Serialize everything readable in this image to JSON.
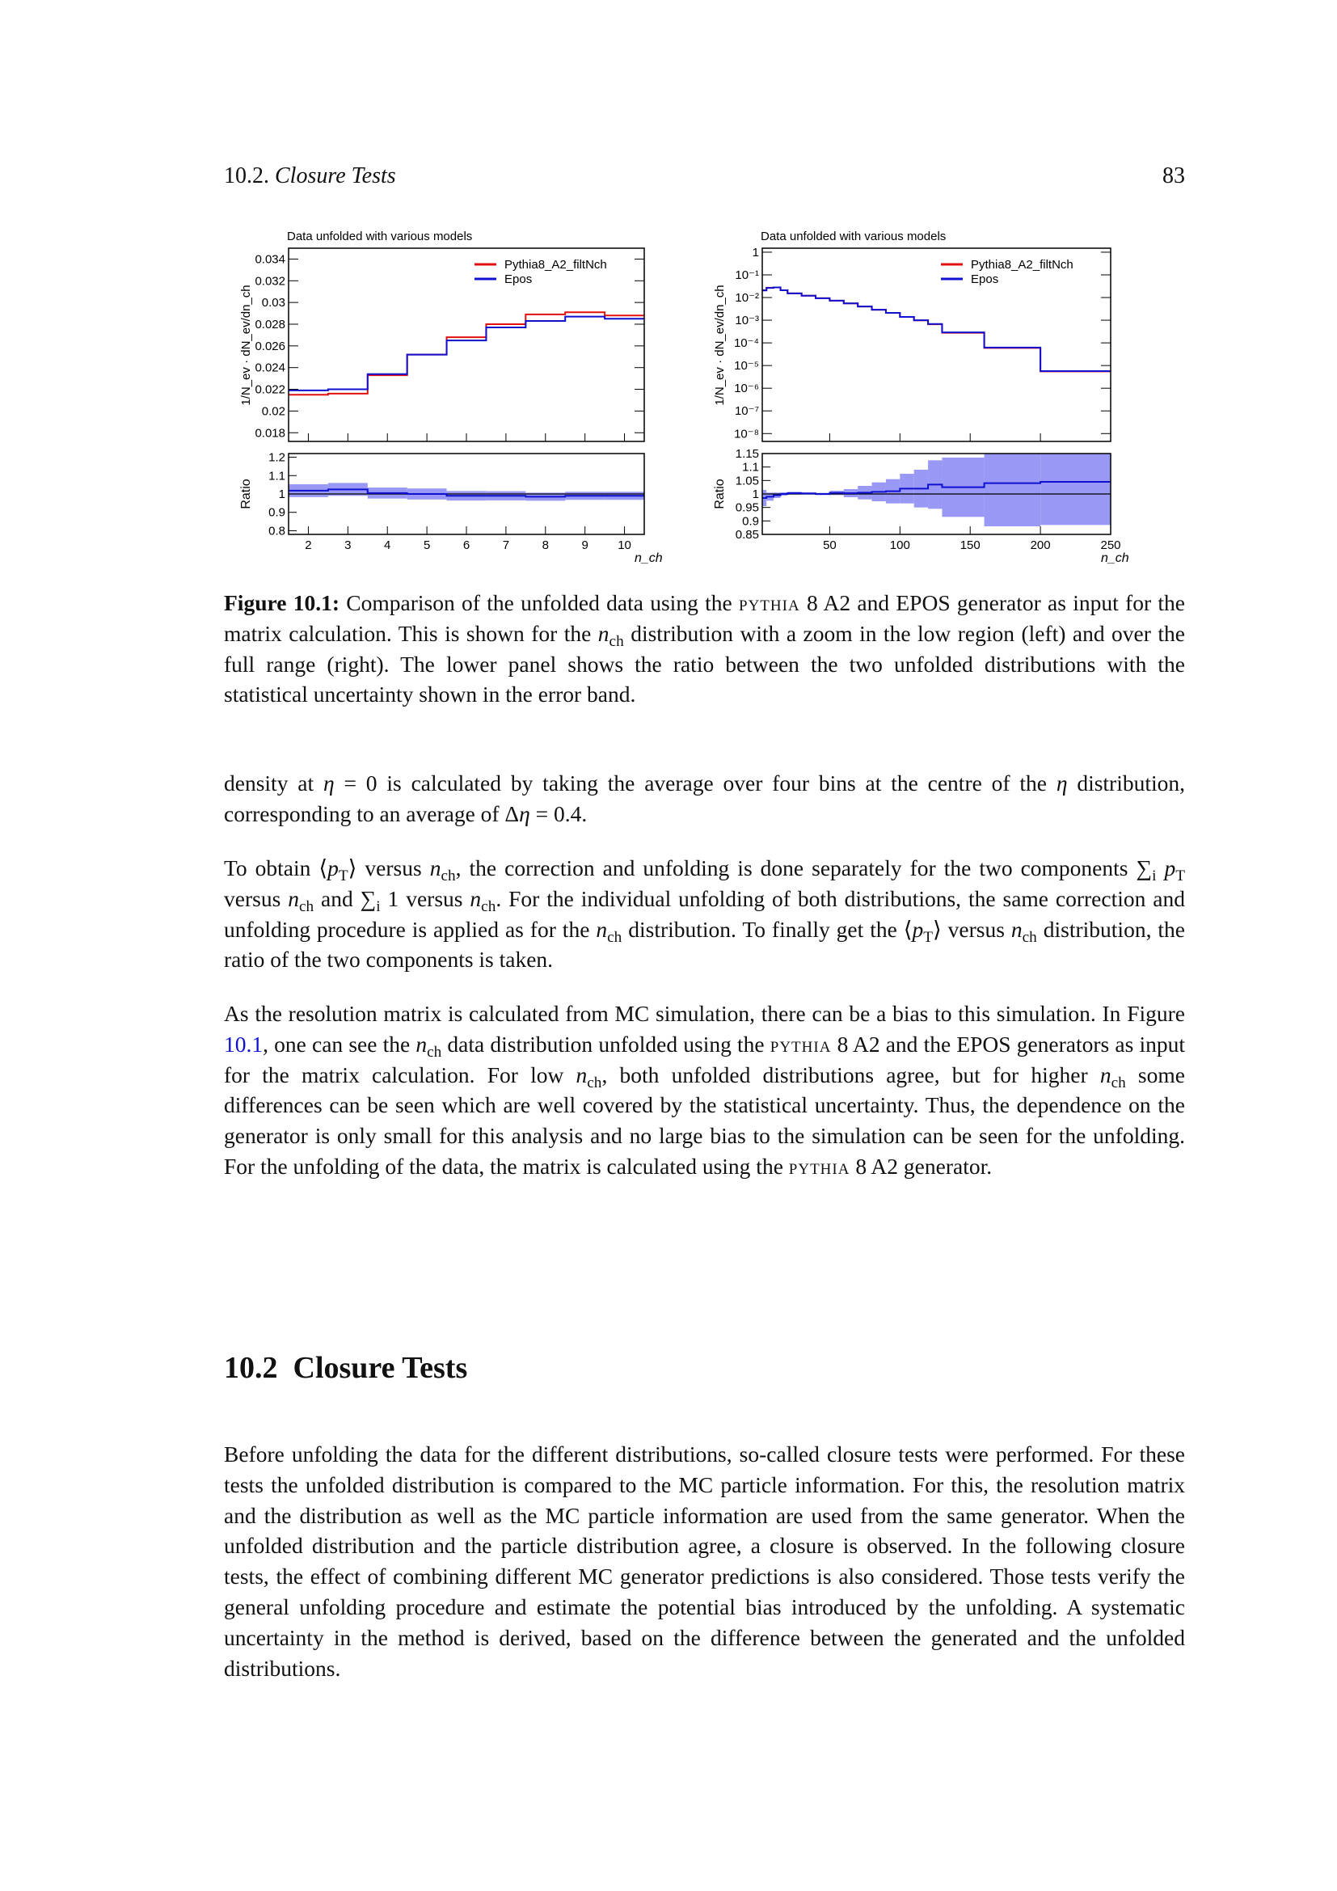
{
  "header": {
    "section": "10.2.",
    "section_title": "Closure Tests",
    "page_number": "83"
  },
  "chart_data": [
    {
      "type": "line",
      "subtype": "step-histogram",
      "title": "Data unfolded with various models",
      "ylabel": "1/N_ev · dN_ev/dn_ch",
      "xlabel": "n_ch",
      "ratio_ylabel": "Ratio",
      "legend": [
        "Pythia8_A2_filtNch",
        "Epos"
      ],
      "legend_placement": "top-right",
      "colors": {
        "Pythia8_A2_filtNch": "#e01010",
        "Epos": "#1010d0",
        "band": "#9999f5"
      },
      "xlim": [
        1.5,
        10.5
      ],
      "ylim": [
        0.0172,
        0.035
      ],
      "ylog": false,
      "ratio_ylim": [
        0.78,
        1.22
      ],
      "xticks": [
        "2",
        "3",
        "4",
        "5",
        "6",
        "7",
        "8",
        "9",
        "10"
      ],
      "xtick_values": [
        2,
        3,
        4,
        5,
        6,
        7,
        8,
        9,
        10
      ],
      "yticks": [
        "0.018",
        "0.02",
        "0.022",
        "0.024",
        "0.026",
        "0.028",
        "0.03",
        "0.032",
        "0.034"
      ],
      "ytick_values": [
        0.018,
        0.02,
        0.022,
        0.024,
        0.026,
        0.028,
        0.03,
        0.032,
        0.034
      ],
      "ratio_yticks": [
        "0.8",
        "0.9",
        "1",
        "1.1",
        "1.2"
      ],
      "ratio_ytick_values": [
        0.8,
        0.9,
        1,
        1.1,
        1.2
      ],
      "bin_edges": [
        1.5,
        2.5,
        3.5,
        4.5,
        5.5,
        6.5,
        7.5,
        8.5,
        9.5,
        10.5
      ],
      "series": [
        {
          "name": "Pythia8_A2_filtNch",
          "values": [
            0.0215,
            0.0216,
            0.0233,
            0.0252,
            0.0268,
            0.028,
            0.0289,
            0.0291,
            0.0288
          ]
        },
        {
          "name": "Epos",
          "values": [
            0.0219,
            0.022,
            0.0234,
            0.0252,
            0.0265,
            0.0277,
            0.0283,
            0.0287,
            0.0285
          ]
        }
      ],
      "ratio": [
        1.018,
        1.025,
        1.005,
        1.0,
        0.99,
        0.99,
        0.985,
        0.99,
        0.99
      ],
      "ratio_band": [
        0.035,
        0.035,
        0.03,
        0.03,
        0.026,
        0.025,
        0.022,
        0.022,
        0.022
      ]
    },
    {
      "type": "line",
      "subtype": "step-histogram",
      "title": "Data unfolded with various models",
      "ylabel": "1/N_ev · dN_ev/dn_ch",
      "xlabel": "n_ch",
      "ratio_ylabel": "Ratio",
      "legend": [
        "Pythia8_A2_filtNch",
        "Epos"
      ],
      "legend_placement": "top-right",
      "colors": {
        "Pythia8_A2_filtNch": "#e01010",
        "Epos": "#1010d0",
        "band": "#9999f5"
      },
      "xlim": [
        2,
        250
      ],
      "ylim": [
        4.5e-09,
        1.5
      ],
      "ylog": true,
      "ratio_ylim": [
        0.85,
        1.15
      ],
      "xticks": [
        "50",
        "100",
        "150",
        "200",
        "250"
      ],
      "xtick_values": [
        50,
        100,
        150,
        200,
        250
      ],
      "yticks": [
        "1",
        "10⁻¹",
        "10⁻²",
        "10⁻³",
        "10⁻⁴",
        "10⁻⁵",
        "10⁻⁶",
        "10⁻⁷",
        "10⁻⁸"
      ],
      "ytick_values": [
        1,
        0.1,
        0.01,
        0.001,
        0.0001,
        1e-05,
        1e-06,
        1e-07,
        1e-08
      ],
      "ratio_yticks": [
        "0.85",
        "0.9",
        "0.95",
        "1",
        "1.05",
        "1.1",
        "1.15"
      ],
      "ratio_ytick_values": [
        0.85,
        0.9,
        0.95,
        1,
        1.05,
        1.1,
        1.15
      ],
      "bin_edges": [
        2,
        5,
        10,
        15,
        20,
        30,
        40,
        50,
        60,
        70,
        80,
        90,
        100,
        110,
        120,
        130,
        160,
        200,
        250
      ],
      "series": [
        {
          "name": "Pythia8_A2_filtNch",
          "values": [
            0.021,
            0.027,
            0.028,
            0.021,
            0.0152,
            0.012,
            0.0093,
            0.0073,
            0.0055,
            0.004,
            0.0029,
            0.0021,
            0.0014,
            0.00098,
            0.00066,
            0.00028,
            6e-05,
            5.5e-06
          ]
        },
        {
          "name": "Epos",
          "values": [
            0.0205,
            0.0265,
            0.028,
            0.021,
            0.0152,
            0.012,
            0.0093,
            0.0073,
            0.0055,
            0.004,
            0.0029,
            0.0021,
            0.0014,
            0.001,
            0.00068,
            0.00029,
            6.2e-05,
            5.7e-06
          ]
        }
      ],
      "ratio": [
        0.985,
        0.99,
        0.995,
        1.0,
        1.003,
        1.002,
        1.0,
        1.004,
        1.003,
        1.005,
        1.008,
        1.01,
        1.02,
        1.02,
        1.035,
        1.025,
        1.04,
        1.045
      ],
      "ratio_band": [
        0.03,
        0.015,
        0.01,
        0.006,
        0.005,
        0.004,
        0.004,
        0.008,
        0.015,
        0.025,
        0.035,
        0.045,
        0.055,
        0.07,
        0.09,
        0.11,
        0.16,
        0.16
      ]
    }
  ],
  "caption": [
    [
      "Figure 10.1:",
      "b"
    ],
    [
      " Comparison of the unfolded data using the ",
      ""
    ],
    [
      "pythia",
      "sc"
    ],
    [
      " 8 A2 and EPOS generator as input for the matrix calculation. This is shown for the ",
      ""
    ],
    [
      "n",
      "i"
    ],
    [
      "ch",
      "sub"
    ],
    [
      " distribution with a zoom in the low region (left) and over the full range (right). The lower panel shows the ratio between the two unfolded distributions with the statistical uncertainty shown in the error band.",
      ""
    ]
  ],
  "paragraphs": [
    [
      [
        "density at ",
        ""
      ],
      [
        "η",
        "i"
      ],
      [
        " = 0 is calculated by taking the average over four bins at the centre of the ",
        ""
      ],
      [
        "η",
        "i"
      ],
      [
        " distribution, corresponding to an average of Δ",
        ""
      ],
      [
        "η",
        "i"
      ],
      [
        " = 0.4.",
        ""
      ]
    ],
    [
      [
        "To obtain ⟨",
        ""
      ],
      [
        "p",
        "i"
      ],
      [
        "T",
        "sub"
      ],
      [
        "⟩ versus ",
        ""
      ],
      [
        "n",
        "i"
      ],
      [
        "ch",
        "sub"
      ],
      [
        ", the correction and unfolding is done separately for the two components ∑",
        ""
      ],
      [
        "i",
        "sub"
      ],
      [
        " ",
        ""
      ],
      [
        "p",
        "i"
      ],
      [
        "T",
        "sub"
      ],
      [
        " versus ",
        ""
      ],
      [
        "n",
        "i"
      ],
      [
        "ch",
        "sub"
      ],
      [
        " and ∑",
        ""
      ],
      [
        "i",
        "sub"
      ],
      [
        " 1 versus ",
        ""
      ],
      [
        "n",
        "i"
      ],
      [
        "ch",
        "sub"
      ],
      [
        ". For the individual unfolding of both distributions, the same correction and unfolding procedure is applied as for the ",
        ""
      ],
      [
        "n",
        "i"
      ],
      [
        "ch",
        "sub"
      ],
      [
        " distribution. To finally get the ⟨",
        ""
      ],
      [
        "p",
        "i"
      ],
      [
        "T",
        "sub"
      ],
      [
        "⟩ versus ",
        ""
      ],
      [
        "n",
        "i"
      ],
      [
        "ch",
        "sub"
      ],
      [
        " distribution, the ratio of the two components is taken.",
        ""
      ]
    ],
    [
      [
        "As the resolution matrix is calculated from MC simulation, there can be a bias to this simulation. In Figure ",
        ""
      ],
      [
        "10.1",
        "link"
      ],
      [
        ", one can see the ",
        ""
      ],
      [
        "n",
        "i"
      ],
      [
        "ch",
        "sub"
      ],
      [
        " data distribution unfolded using the ",
        ""
      ],
      [
        "pythia",
        "sc"
      ],
      [
        " 8 A2 and the EPOS generators as input for the matrix calculation. For low ",
        ""
      ],
      [
        "n",
        "i"
      ],
      [
        "ch",
        "sub"
      ],
      [
        ", both unfolded distributions agree, but for higher ",
        ""
      ],
      [
        "n",
        "i"
      ],
      [
        "ch",
        "sub"
      ],
      [
        " some differences can be seen which are well covered by the statistical uncertainty. Thus, the dependence on the generator is only small for this analysis and no large bias to the simulation can be seen for the unfolding. For the unfolding of the data, the matrix is calculated using the ",
        ""
      ],
      [
        "pythia",
        "sc"
      ],
      [
        " 8 A2 generator.",
        ""
      ]
    ],
    [
      [
        "Before unfolding the data for the different distributions, so-called closure tests were performed. For these tests the unfolded distribution is compared to the MC particle information. For this, the resolution matrix and the distribution as well as the MC particle information are used from the same generator. When the unfolded distribution and the particle distribution agree, a closure is observed. In the following closure tests, the effect of combining different MC generator predictions is also considered. Those tests verify the general unfolding procedure and estimate the potential bias introduced by the unfolding. A systematic uncertainty in the method is derived, based on the difference between the generated and the unfolded distributions.",
        ""
      ]
    ]
  ],
  "heading": {
    "number": "10.2",
    "title": "Closure Tests"
  }
}
